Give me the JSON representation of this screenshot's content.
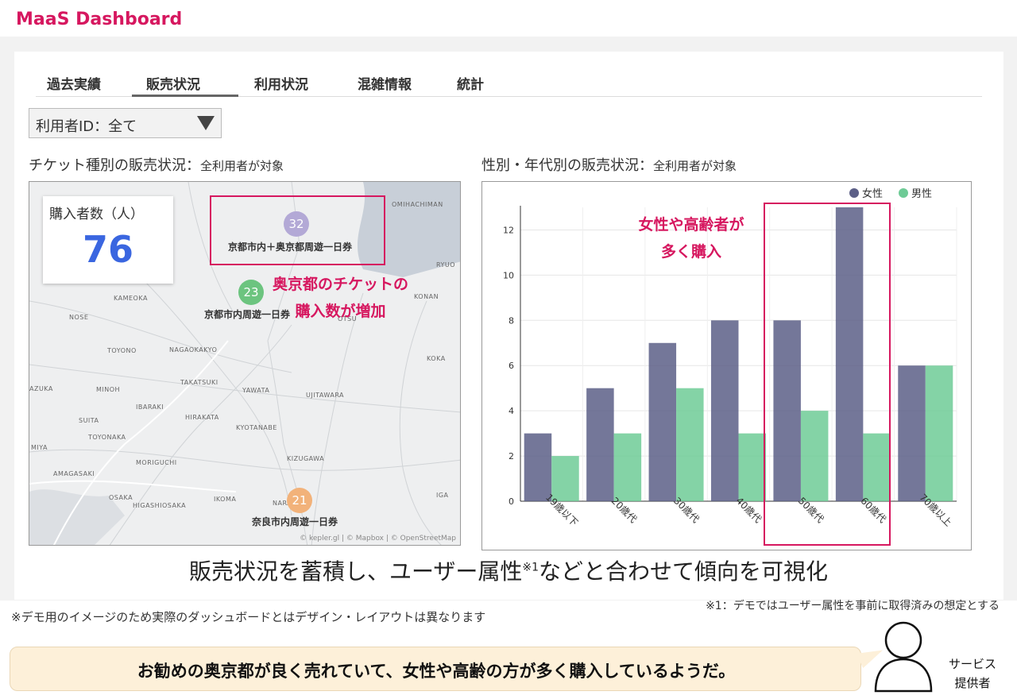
{
  "app": {
    "title": "MaaS Dashboard"
  },
  "tabs": [
    {
      "label": "過去実績"
    },
    {
      "label": "販売状況"
    },
    {
      "label": "利用状況"
    },
    {
      "label": "混雑情報"
    },
    {
      "label": "統計"
    }
  ],
  "active_tab": "販売状況",
  "filter": {
    "label": "利用者ID：全て"
  },
  "left_section": {
    "title": "チケット種別の販売状況：",
    "subtitle": "全利用者が対象"
  },
  "right_section": {
    "title": "性別・年代別の販売状況：",
    "subtitle": "全利用者が対象"
  },
  "map": {
    "kpi_label": "購入者数（人）",
    "kpi_value": "76",
    "places": [
      "OMIHACHIMAN",
      "RYUO",
      "KONAN",
      "KAMEOKA",
      "NOSE",
      "TOYONO",
      "NAGAOKAKYO",
      "IBARAKI",
      "MINOH",
      "YAWATA",
      "UJITAWARA",
      "HIRAKATA",
      "KYOTANABE",
      "TOYONAKA",
      "MORIGUCHI",
      "KIZUGAWA",
      "AMAGASAKI",
      "OSAKA",
      "HIGASHIOSAKA",
      "IKOMA",
      "NARA",
      "IGA",
      "KOKA",
      "TAKATSUKI",
      "MIYA",
      "SUITA",
      "OTSU",
      "AZUKA"
    ],
    "clusters": [
      {
        "value": "32",
        "label": "京都市内＋奥京都周遊一日券",
        "color": "#b3a9d6"
      },
      {
        "value": "23",
        "label": "京都市内周遊一日券",
        "color": "#6cc47f"
      },
      {
        "value": "21",
        "label": "奈良市内周遊一日券",
        "color": "#f2b27a"
      }
    ],
    "annotation": [
      "奥京都のチケットの",
      "購入数が増加"
    ],
    "attribution": "© kepler.gl | © Mapbox | © OpenStreetMap"
  },
  "chart_data": {
    "type": "bar",
    "categories": [
      "19歳以下",
      "20歳代",
      "30歳代",
      "40歳代",
      "50歳代",
      "60歳代",
      "70歳以上"
    ],
    "series": [
      {
        "name": "女性",
        "values": [
          3,
          5,
          7,
          8,
          8,
          13,
          6
        ],
        "color": "#5c5f87"
      },
      {
        "name": "男性",
        "values": [
          2,
          3,
          5,
          3,
          4,
          3,
          6
        ],
        "color": "#6ecb96"
      }
    ],
    "ylim": [
      0,
      13
    ],
    "yticks": [
      0,
      2,
      4,
      6,
      8,
      10,
      12
    ],
    "legend": "top-right",
    "grid": true,
    "annotation": [
      "女性や高齢者が",
      "多く購入"
    ]
  },
  "caption": {
    "text": "販売状況を蓄積し、ユーザー属性",
    "sup": "※1",
    "text2": "などと合わせて傾向を可視化"
  },
  "footnotes": {
    "note1": "※1：デモではユーザー属性を事前に取得済みの想定とする",
    "note2": "※デモ用のイメージのため実際のダッシュボードとはデザイン・レイアウトは異なります"
  },
  "speech": {
    "text": "お勧めの奥京都が良く売れていて、女性や高齢の方が多く購入しているようだ。"
  },
  "persona": {
    "line1": "サービス",
    "line2": "提供者"
  }
}
